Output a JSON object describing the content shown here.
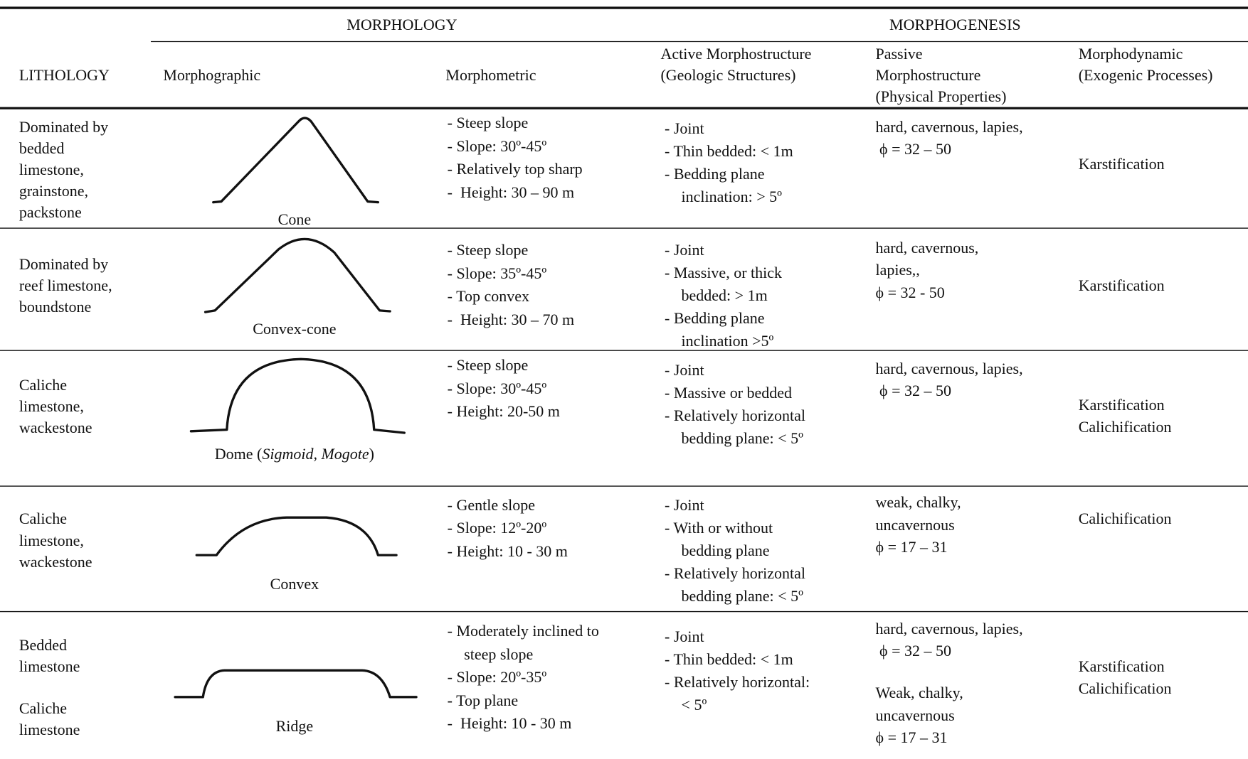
{
  "header": {
    "morphology": "MORPHOLOGY",
    "morphogenesis": "MORPHOGENESIS",
    "lithology": "LITHOLOGY",
    "morphographic": "Morphographic",
    "morphometric": "Morphometric",
    "active": [
      "Active Morphostructure",
      "(Geologic Structures)"
    ],
    "passive": [
      "Passive",
      "Morphostructure",
      "(Physical Properties)"
    ],
    "morphodynamic": [
      "Morphodynamic",
      "(Exogenic Processes)"
    ]
  },
  "rows": [
    {
      "lithology": [
        [
          "Dominated by",
          "bedded",
          "limestone,",
          "grainstone,",
          "packstone"
        ]
      ],
      "shape_label": [
        "Cone"
      ],
      "morphometric": [
        [
          "- Steep slope"
        ],
        [
          "- Slope: 30º-45º"
        ],
        [
          "- Relatively top sharp"
        ],
        [
          "-  Height: 30 – 90 m"
        ]
      ],
      "active": [
        [
          "- Joint"
        ],
        [
          "- Thin bedded: < 1m"
        ],
        [
          "- Bedding plane",
          "inclination: > 5º"
        ]
      ],
      "passive": [
        [
          "hard, cavernous, lapies,",
          " ϕ = 32 – 50"
        ]
      ],
      "morphodynamic": [
        "Karstification"
      ]
    },
    {
      "lithology": [
        [
          "Dominated by",
          "reef limestone,",
          "boundstone"
        ]
      ],
      "shape_label": [
        "Convex-cone"
      ],
      "morphometric": [
        [
          "- Steep slope"
        ],
        [
          "- Slope: 35º-45º"
        ],
        [
          "- Top convex"
        ],
        [
          "-  Height: 30 – 70 m"
        ]
      ],
      "active": [
        [
          "- Joint"
        ],
        [
          "- Massive, or thick",
          "bedded: > 1m"
        ],
        [
          "- Bedding plane",
          "inclination >5º"
        ]
      ],
      "passive": [
        [
          "hard, cavernous,",
          "lapies,,",
          "ϕ = 32 - 50"
        ]
      ],
      "morphodynamic": [
        "Karstification"
      ]
    },
    {
      "lithology": [
        [
          "Caliche",
          "limestone,",
          "wackestone"
        ]
      ],
      "shape_label": [
        "Dome (",
        "Sigmoid, Mogote",
        ")"
      ],
      "morphometric": [
        [
          "- Steep slope"
        ],
        [
          "- Slope: 30º-45º"
        ],
        [
          "- Height: 20-50 m"
        ]
      ],
      "active": [
        [
          "- Joint"
        ],
        [
          "- Massive or bedded"
        ],
        [
          "- Relatively horizontal",
          "bedding plane: < 5º"
        ]
      ],
      "passive": [
        [
          "hard, cavernous, lapies,",
          " ϕ = 32 – 50"
        ]
      ],
      "morphodynamic": [
        "Karstification",
        "Calichification"
      ]
    },
    {
      "lithology": [
        [
          "Caliche",
          "limestone,",
          "wackestone"
        ]
      ],
      "shape_label": [
        "Convex"
      ],
      "morphometric": [
        [
          "- Gentle slope"
        ],
        [
          "- Slope: 12º-20º"
        ],
        [
          "- Height: 10 - 30 m"
        ]
      ],
      "active": [
        [
          "- Joint"
        ],
        [
          "- With or without",
          "bedding plane"
        ],
        [
          "- Relatively horizontal",
          "bedding plane: < 5º"
        ]
      ],
      "passive": [
        [
          "weak, chalky,",
          "uncavernous",
          "ϕ = 17 – 31"
        ]
      ],
      "morphodynamic": [
        "Calichification"
      ]
    },
    {
      "lithology": [
        [
          "Bedded",
          "limestone"
        ],
        [
          "Caliche",
          "limestone"
        ]
      ],
      "shape_label": [
        "Ridge"
      ],
      "morphometric": [
        [
          "- Moderately inclined to",
          "steep slope"
        ],
        [
          "- Slope: 20º-35º"
        ],
        [
          "- Top plane"
        ],
        [
          "-  Height: 10 - 30 m"
        ]
      ],
      "active": [
        [
          "- Joint"
        ],
        [
          "- Thin bedded: < 1m"
        ],
        [
          "- Relatively horizontal:",
          "< 5º"
        ]
      ],
      "passive": [
        [
          "hard, cavernous, lapies,",
          " ϕ = 32 – 50"
        ],
        [
          "Weak, chalky,",
          "uncavernous",
          "ϕ = 17 – 31"
        ]
      ],
      "morphodynamic": [
        "Karstification",
        "Calichification"
      ]
    }
  ]
}
